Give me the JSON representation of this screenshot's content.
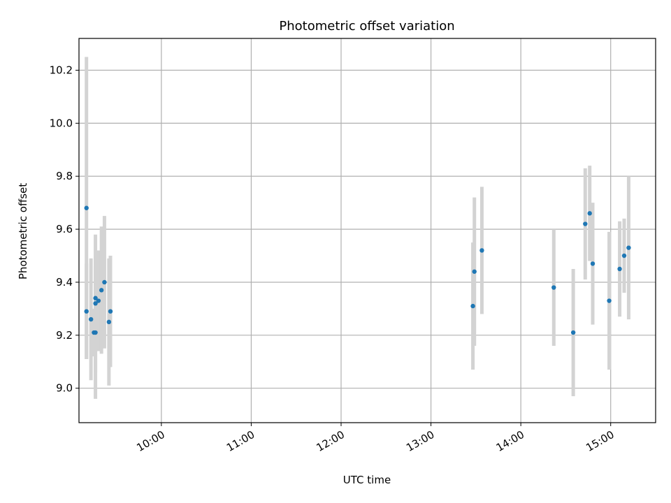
{
  "chart_data": {
    "type": "scatter",
    "title": "Photometric offset variation",
    "xlabel": "UTC time",
    "ylabel": "Photometric offset",
    "xlim": [
      "09:05",
      "15:30"
    ],
    "ylim": [
      8.87,
      10.32
    ],
    "xticks": [
      "10:00",
      "11:00",
      "12:00",
      "13:00",
      "14:00",
      "15:00"
    ],
    "yticks": [
      "9.0",
      "9.2",
      "9.4",
      "9.6",
      "9.8",
      "10.0",
      "10.2"
    ],
    "grid": true,
    "series": [
      {
        "marker_color": "#1f77b4",
        "errorbar_color": "#d3d3d3",
        "points": [
          {
            "x": "09:10",
            "y": 9.68,
            "err": 0.57
          },
          {
            "x": "09:10",
            "y": 9.29,
            "err": 0.18
          },
          {
            "x": "09:13",
            "y": 9.26,
            "err": 0.23
          },
          {
            "x": "09:15",
            "y": 9.21,
            "err": 0.09
          },
          {
            "x": "09:16",
            "y": 9.21,
            "err": 0.25
          },
          {
            "x": "09:16",
            "y": 9.32,
            "err": 0.26
          },
          {
            "x": "09:16",
            "y": 9.34,
            "err": 0.16
          },
          {
            "x": "09:18",
            "y": 9.33,
            "err": 0.19
          },
          {
            "x": "09:20",
            "y": 9.37,
            "err": 0.24
          },
          {
            "x": "09:22",
            "y": 9.4,
            "err": 0.25
          },
          {
            "x": "09:25",
            "y": 9.25,
            "err": 0.24
          },
          {
            "x": "09:26",
            "y": 9.29,
            "err": 0.21
          },
          {
            "x": "13:28",
            "y": 9.31,
            "err": 0.24
          },
          {
            "x": "13:29",
            "y": 9.44,
            "err": 0.28
          },
          {
            "x": "13:34",
            "y": 9.52,
            "err": 0.24
          },
          {
            "x": "14:22",
            "y": 9.38,
            "err": 0.22
          },
          {
            "x": "14:35",
            "y": 9.21,
            "err": 0.24
          },
          {
            "x": "14:43",
            "y": 9.62,
            "err": 0.21
          },
          {
            "x": "14:46",
            "y": 9.66,
            "err": 0.18
          },
          {
            "x": "14:48",
            "y": 9.47,
            "err": 0.23
          },
          {
            "x": "14:59",
            "y": 9.33,
            "err": 0.26
          },
          {
            "x": "15:06",
            "y": 9.45,
            "err": 0.18
          },
          {
            "x": "15:09",
            "y": 9.5,
            "err": 0.14
          },
          {
            "x": "15:12",
            "y": 9.53,
            "err": 0.27
          }
        ]
      }
    ]
  }
}
